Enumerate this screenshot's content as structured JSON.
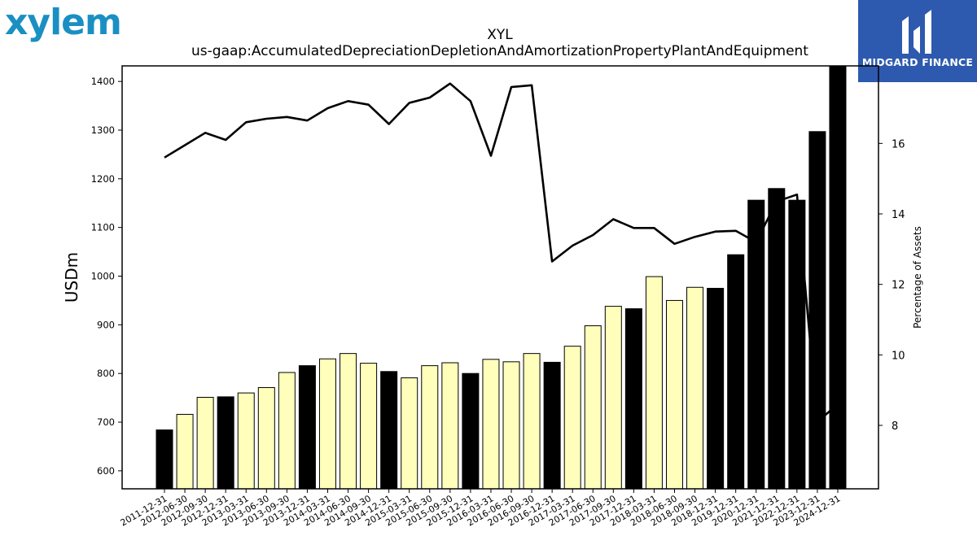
{
  "logos": {
    "left": "xylem",
    "right": "MIDGARD FINANCE"
  },
  "chart_data": {
    "type": "bar",
    "title": "XYL",
    "subtitle": "us-gaap:AccumulatedDepreciationDepletionAndAmortizationPropertyPlantAndEquipment",
    "ylabel": "USDm",
    "y2label": "Percentage of Assets",
    "ylim": [
      563,
      1432
    ],
    "y2lim": [
      6.2,
      18.2
    ],
    "yticks": [
      600,
      700,
      800,
      900,
      1000,
      1100,
      1200,
      1300,
      1400
    ],
    "y2ticks": [
      8,
      10,
      12,
      14,
      16
    ],
    "categories": [
      "2011-12-31",
      "2012-06-30",
      "2012-09-30",
      "2012-12-31",
      "2013-03-31",
      "2013-06-30",
      "2013-09-30",
      "2013-12-31",
      "2014-03-31",
      "2014-06-30",
      "2014-09-30",
      "2014-12-31",
      "2015-03-31",
      "2015-06-30",
      "2015-09-30",
      "2015-12-31",
      "2016-03-31",
      "2016-06-30",
      "2016-09-30",
      "2016-12-31",
      "2017-03-31",
      "2017-06-30",
      "2017-09-30",
      "2017-12-31",
      "2018-03-31",
      "2018-06-30",
      "2018-09-30",
      "2018-12-31",
      "2019-12-31",
      "2020-12-31",
      "2021-12-31",
      "2022-12-31",
      "2023-12-31",
      "2024-12-31"
    ],
    "series": [
      {
        "type": "bar",
        "values": [
          684,
          716,
          751,
          752,
          760,
          771,
          802,
          816,
          830,
          841,
          821,
          804,
          791,
          816,
          822,
          800,
          829,
          824,
          841,
          823,
          856,
          898,
          938,
          933,
          999,
          950,
          977,
          975,
          1044,
          1156,
          1180,
          1156,
          1297,
          1432
        ],
        "bar_colors": [
          "#000000",
          "#ffffbb",
          "#ffffbb",
          "#000000",
          "#ffffbb",
          "#ffffbb",
          "#ffffbb",
          "#000000",
          "#ffffbb",
          "#ffffbb",
          "#ffffbb",
          "#000000",
          "#ffffbb",
          "#ffffbb",
          "#ffffbb",
          "#000000",
          "#ffffbb",
          "#ffffbb",
          "#ffffbb",
          "#000000",
          "#ffffbb",
          "#ffffbb",
          "#ffffbb",
          "#000000",
          "#ffffbb",
          "#ffffbb",
          "#ffffbb",
          "#000000",
          "#000000",
          "#000000",
          "#000000",
          "#000000",
          "#000000",
          "#000000"
        ]
      },
      {
        "type": "line",
        "axis": "right",
        "values": [
          15.6,
          15.95,
          16.3,
          16.1,
          16.6,
          16.7,
          16.75,
          16.65,
          17.0,
          17.2,
          17.1,
          16.55,
          17.15,
          17.3,
          17.7,
          17.2,
          15.65,
          17.6,
          17.65,
          12.65,
          13.1,
          13.4,
          13.85,
          13.6,
          13.6,
          13.15,
          13.35,
          13.5,
          13.52,
          13.2,
          14.35,
          14.55,
          8.1,
          8.6
        ]
      }
    ],
    "colors": {
      "line": "#000000",
      "light_bar": "#ffffbb",
      "dark_bar": "#000000"
    },
    "grid": false,
    "legend": "none"
  }
}
